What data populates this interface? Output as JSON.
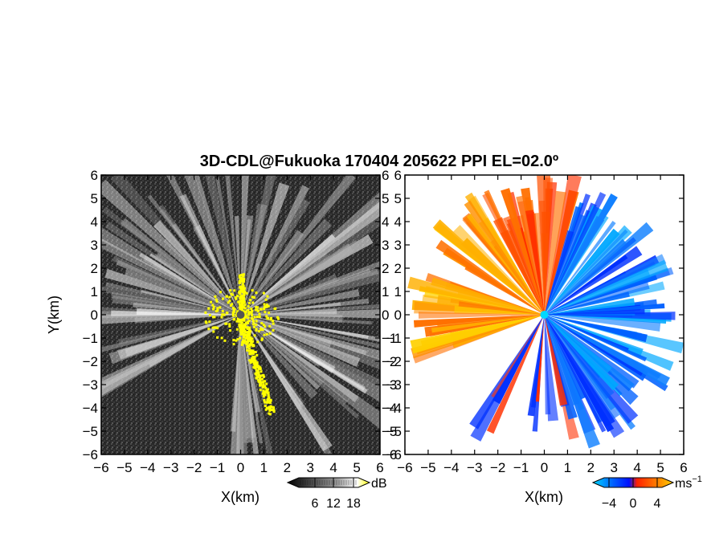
{
  "chart_data": [
    {
      "type": "heatmap",
      "panel": "reflectivity",
      "title": "3D-CDL@Fukuoka 170404 205622 PPI EL=02.0º",
      "xlabel": "X(km)",
      "ylabel": "Y(km)",
      "xlim": [
        -6,
        6
      ],
      "ylim": [
        -6,
        6
      ],
      "x_ticks": [
        "-6",
        "-5",
        "-4",
        "-3",
        "-2",
        "-1",
        "0",
        "1",
        "2",
        "3",
        "4",
        "5",
        "6"
      ],
      "y_ticks": [
        "6",
        "5",
        "4",
        "3",
        "2",
        "1",
        "0",
        "-1",
        "-2",
        "-3",
        "-4",
        "-5",
        "-6"
      ],
      "radar_site": [
        0,
        0
      ],
      "colorbar": {
        "unit": "dB",
        "ticks": [
          "6",
          "12",
          "18"
        ],
        "colors": [
          "#000000",
          "#555555",
          "#aaaaaa",
          "#ffffff",
          "#ffff00"
        ]
      },
      "highlight_color": "#ffff00"
    },
    {
      "type": "heatmap",
      "panel": "doppler_velocity",
      "xlabel": "X(km)",
      "xlim": [
        -6,
        6
      ],
      "ylim": [
        -6,
        6
      ],
      "x_ticks": [
        "-6",
        "-5",
        "-4",
        "-3",
        "-2",
        "-1",
        "0",
        "1",
        "2",
        "3",
        "4",
        "5",
        "6"
      ],
      "y_ticks": [
        "6",
        "5",
        "4",
        "3",
        "2",
        "1",
        "0",
        "-1",
        "-2",
        "-3",
        "-4",
        "-5",
        "-6"
      ],
      "radar_site": [
        0,
        0
      ],
      "colorbar": {
        "unit": "ms",
        "unit_exponent": "−1",
        "ticks": [
          "−4",
          "0",
          "4"
        ],
        "colors": [
          "#00d8ff",
          "#0060ff",
          "#0010ff",
          "#ff2000",
          "#ff8000",
          "#ffd000"
        ]
      }
    }
  ]
}
